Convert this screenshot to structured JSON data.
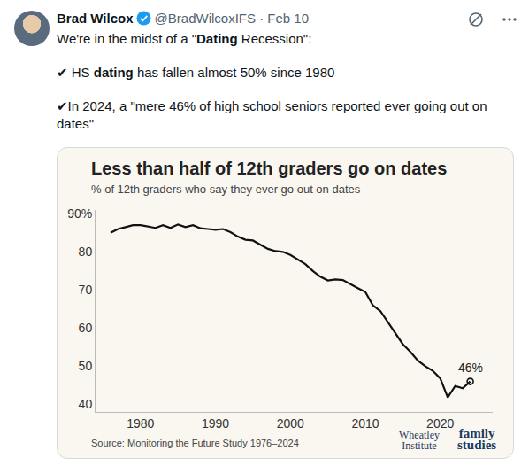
{
  "tweet": {
    "name": "Brad Wilcox",
    "handle": "@BradWilcoxIFS",
    "date": "· Feb 10",
    "body": [
      [
        {
          "text": "We're in the midst of a \"",
          "bold": false
        },
        {
          "text": "Dating",
          "bold": true
        },
        {
          "text": " Recession\":",
          "bold": false
        }
      ],
      [
        {
          "text": "✔ HS ",
          "bold": false
        },
        {
          "text": "dating",
          "bold": true
        },
        {
          "text": " has fallen almost 50% since 1980",
          "bold": false
        }
      ],
      [
        {
          "text": "✔In 2024, a \"mere 46% of high school seniors reported ever going out on dates\"",
          "bold": false
        }
      ]
    ]
  },
  "chart_data": {
    "type": "line",
    "title": "Less than half of 12th graders go on dates",
    "subtitle": "% of 12th graders who say they ever go out on dates",
    "source": "Source: Monitoring the Future Study 1976–2024",
    "logos": [
      [
        "Wheatley",
        "Institute"
      ],
      [
        "family",
        "studies"
      ]
    ],
    "x": [
      1976,
      1977,
      1978,
      1979,
      1980,
      1981,
      1982,
      1983,
      1984,
      1985,
      1986,
      1987,
      1988,
      1989,
      1990,
      1991,
      1992,
      1993,
      1994,
      1995,
      1996,
      1997,
      1998,
      1999,
      2000,
      2001,
      2002,
      2003,
      2004,
      2005,
      2006,
      2007,
      2008,
      2009,
      2010,
      2011,
      2012,
      2013,
      2014,
      2015,
      2016,
      2017,
      2018,
      2019,
      2020,
      2021,
      2022,
      2023,
      2024
    ],
    "values": [
      85,
      86,
      86.5,
      87,
      87,
      86.7,
      86.3,
      87,
      86.3,
      87.2,
      86.5,
      87,
      86.2,
      86,
      85.8,
      86,
      85.2,
      84,
      83.2,
      83,
      81.8,
      80.8,
      80.2,
      80,
      79.2,
      78,
      76.8,
      75,
      73.5,
      72.5,
      72.8,
      72.6,
      71.5,
      70.5,
      69.5,
      66,
      64.5,
      61.5,
      58.5,
      55.8,
      53.8,
      51.5,
      50,
      48.8,
      46.8,
      41.8,
      44.8,
      44.2,
      46
    ],
    "color": "#111111",
    "xlim": [
      1974,
      2027
    ],
    "xticks": [
      1980,
      1990,
      2000,
      2010,
      2020
    ],
    "ylim": [
      38,
      91
    ],
    "yticks": [
      40,
      50,
      60,
      70,
      80,
      {
        "value": 90,
        "label": "90%"
      }
    ],
    "grid": false,
    "annotations": [
      {
        "x": 2024,
        "y": 46,
        "text": "46%"
      }
    ]
  }
}
